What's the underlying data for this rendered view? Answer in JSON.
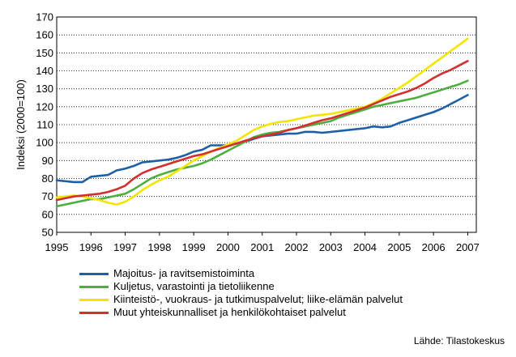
{
  "chart_data": {
    "type": "line",
    "title": "",
    "ylabel": "Indeksi (2000=100)",
    "xlabel": "",
    "ylim": [
      50,
      170
    ],
    "xlim": [
      1995,
      2007.25
    ],
    "yticks": [
      50,
      60,
      70,
      80,
      90,
      100,
      110,
      120,
      130,
      140,
      150,
      160,
      170
    ],
    "xticks": [
      "1995",
      "1996",
      "1997",
      "1998",
      "1999",
      "2000",
      "2001",
      "2002",
      "2003",
      "2004",
      "2005",
      "2006",
      "2007"
    ],
    "grid": true,
    "legend_position": "bottom",
    "source": "Lähde: Tilastokeskus",
    "series": [
      {
        "name": "Majoitus- ja ravitsemistoiminta",
        "color": "#1f5fa6",
        "points": [
          [
            1995,
            79
          ],
          [
            1995.25,
            78.5
          ],
          [
            1995.5,
            78
          ],
          [
            1995.75,
            78
          ],
          [
            1996,
            81
          ],
          [
            1996.25,
            81.5
          ],
          [
            1996.5,
            82
          ],
          [
            1996.75,
            84.5
          ],
          [
            1997,
            85.5
          ],
          [
            1997.25,
            87
          ],
          [
            1997.5,
            89
          ],
          [
            1997.75,
            89.5
          ],
          [
            1998,
            90
          ],
          [
            1998.25,
            90.5
          ],
          [
            1998.5,
            91.5
          ],
          [
            1998.75,
            93
          ],
          [
            1999,
            95
          ],
          [
            1999.25,
            96
          ],
          [
            1999.5,
            98.5
          ],
          [
            1999.75,
            98.5
          ],
          [
            2000,
            98.5
          ],
          [
            2000.25,
            99.5
          ],
          [
            2000.5,
            100.5
          ],
          [
            2000.75,
            102
          ],
          [
            2001,
            103.5
          ],
          [
            2001.25,
            104
          ],
          [
            2001.5,
            104.5
          ],
          [
            2001.75,
            105
          ],
          [
            2002,
            105
          ],
          [
            2002.25,
            106
          ],
          [
            2002.5,
            106
          ],
          [
            2002.75,
            105.5
          ],
          [
            2003,
            106
          ],
          [
            2003.25,
            106.5
          ],
          [
            2003.5,
            107
          ],
          [
            2003.75,
            107.5
          ],
          [
            2004,
            108
          ],
          [
            2004.25,
            109
          ],
          [
            2004.5,
            108.5
          ],
          [
            2004.75,
            109
          ],
          [
            2005,
            111
          ],
          [
            2005.25,
            112.5
          ],
          [
            2005.5,
            114
          ],
          [
            2005.75,
            115.5
          ],
          [
            2006,
            117
          ],
          [
            2006.25,
            119
          ],
          [
            2006.5,
            121.5
          ],
          [
            2006.75,
            124
          ],
          [
            2007,
            126.5
          ]
        ]
      },
      {
        "name": "Kuljetus, varastointi ja tietoliikenne",
        "color": "#4caf3e",
        "points": [
          [
            1995,
            64.5
          ],
          [
            1995.25,
            65.5
          ],
          [
            1995.5,
            66.5
          ],
          [
            1995.75,
            67.5
          ],
          [
            1996,
            68.5
          ],
          [
            1996.25,
            68.5
          ],
          [
            1996.5,
            69.5
          ],
          [
            1996.75,
            70.5
          ],
          [
            1997,
            71.5
          ],
          [
            1997.25,
            74
          ],
          [
            1997.5,
            77
          ],
          [
            1997.75,
            80
          ],
          [
            1998,
            82
          ],
          [
            1998.25,
            83.5
          ],
          [
            1998.5,
            85
          ],
          [
            1998.75,
            86
          ],
          [
            1999,
            87
          ],
          [
            1999.25,
            88.5
          ],
          [
            1999.5,
            90.5
          ],
          [
            1999.75,
            93
          ],
          [
            2000,
            95.5
          ],
          [
            2000.25,
            98
          ],
          [
            2000.5,
            100.5
          ],
          [
            2000.75,
            103
          ],
          [
            2001,
            104.5
          ],
          [
            2001.25,
            105.5
          ],
          [
            2001.5,
            106
          ],
          [
            2001.75,
            107
          ],
          [
            2002,
            108
          ],
          [
            2002.25,
            109
          ],
          [
            2002.5,
            110
          ],
          [
            2002.75,
            111
          ],
          [
            2003,
            112
          ],
          [
            2003.25,
            114
          ],
          [
            2003.5,
            115.5
          ],
          [
            2003.75,
            117
          ],
          [
            2004,
            118.5
          ],
          [
            2004.25,
            120
          ],
          [
            2004.5,
            121
          ],
          [
            2004.75,
            122
          ],
          [
            2005,
            123
          ],
          [
            2005.25,
            124
          ],
          [
            2005.5,
            125
          ],
          [
            2005.75,
            126.5
          ],
          [
            2006,
            128
          ],
          [
            2006.25,
            129.5
          ],
          [
            2006.5,
            131
          ],
          [
            2006.75,
            132.5
          ],
          [
            2007,
            134.5
          ]
        ]
      },
      {
        "name": "Kiinteistö-, vuokraus- ja tutkimuspalvelut; liike-elämän palvelut",
        "color": "#f2e600",
        "points": [
          [
            1995,
            69.5
          ],
          [
            1995.25,
            70
          ],
          [
            1995.5,
            70.5
          ],
          [
            1995.75,
            70
          ],
          [
            1996,
            69
          ],
          [
            1996.25,
            68
          ],
          [
            1996.5,
            66.5
          ],
          [
            1996.75,
            65.5
          ],
          [
            1997,
            67
          ],
          [
            1997.25,
            70
          ],
          [
            1997.5,
            73.5
          ],
          [
            1997.75,
            76.5
          ],
          [
            1998,
            79
          ],
          [
            1998.25,
            81
          ],
          [
            1998.5,
            84
          ],
          [
            1998.75,
            87
          ],
          [
            1999,
            90
          ],
          [
            1999.25,
            92.5
          ],
          [
            1999.5,
            95
          ],
          [
            1999.75,
            97
          ],
          [
            2000,
            99
          ],
          [
            2000.25,
            101
          ],
          [
            2000.5,
            104
          ],
          [
            2000.75,
            107
          ],
          [
            2001,
            109
          ],
          [
            2001.25,
            110.5
          ],
          [
            2001.5,
            111.5
          ],
          [
            2001.75,
            112
          ],
          [
            2002,
            113
          ],
          [
            2002.25,
            114
          ],
          [
            2002.5,
            115
          ],
          [
            2002.75,
            115.5
          ],
          [
            2003,
            116
          ],
          [
            2003.25,
            117
          ],
          [
            2003.5,
            118
          ],
          [
            2003.75,
            119
          ],
          [
            2004,
            120
          ],
          [
            2004.25,
            122
          ],
          [
            2004.5,
            124.5
          ],
          [
            2004.75,
            127.5
          ],
          [
            2005,
            130.5
          ],
          [
            2005.25,
            133.5
          ],
          [
            2005.5,
            137
          ],
          [
            2005.75,
            140.5
          ],
          [
            2006,
            144
          ],
          [
            2006.25,
            147.5
          ],
          [
            2006.5,
            151
          ],
          [
            2006.75,
            154.5
          ],
          [
            2007,
            158
          ]
        ]
      },
      {
        "name": "Muut yhteiskunnalliset ja henkilökohtaiset palvelut",
        "color": "#d32f2f",
        "points": [
          [
            1995,
            68
          ],
          [
            1995.25,
            69
          ],
          [
            1995.5,
            70
          ],
          [
            1995.75,
            70.5
          ],
          [
            1996,
            71
          ],
          [
            1996.25,
            71.5
          ],
          [
            1996.5,
            72.5
          ],
          [
            1996.75,
            74
          ],
          [
            1997,
            76
          ],
          [
            1997.25,
            80
          ],
          [
            1997.5,
            83
          ],
          [
            1997.75,
            85
          ],
          [
            1998,
            86.5
          ],
          [
            1998.25,
            88
          ],
          [
            1998.5,
            89.5
          ],
          [
            1998.75,
            91
          ],
          [
            1999,
            92.5
          ],
          [
            1999.25,
            93.5
          ],
          [
            1999.5,
            95
          ],
          [
            1999.75,
            96.5
          ],
          [
            2000,
            98
          ],
          [
            2000.25,
            99.5
          ],
          [
            2000.5,
            101
          ],
          [
            2000.75,
            102.5
          ],
          [
            2001,
            103.5
          ],
          [
            2001.25,
            104.5
          ],
          [
            2001.5,
            105.5
          ],
          [
            2001.75,
            107
          ],
          [
            2002,
            108
          ],
          [
            2002.25,
            109.5
          ],
          [
            2002.5,
            111
          ],
          [
            2002.75,
            112.5
          ],
          [
            2003,
            113.5
          ],
          [
            2003.25,
            115
          ],
          [
            2003.5,
            116.5
          ],
          [
            2003.75,
            118
          ],
          [
            2004,
            119.5
          ],
          [
            2004.25,
            121.5
          ],
          [
            2004.5,
            123.5
          ],
          [
            2004.75,
            125.5
          ],
          [
            2005,
            127
          ],
          [
            2005.25,
            128.5
          ],
          [
            2005.5,
            130.5
          ],
          [
            2005.75,
            133
          ],
          [
            2006,
            136
          ],
          [
            2006.25,
            138.5
          ],
          [
            2006.5,
            140.5
          ],
          [
            2006.75,
            143
          ],
          [
            2007,
            145.5
          ]
        ]
      }
    ]
  }
}
